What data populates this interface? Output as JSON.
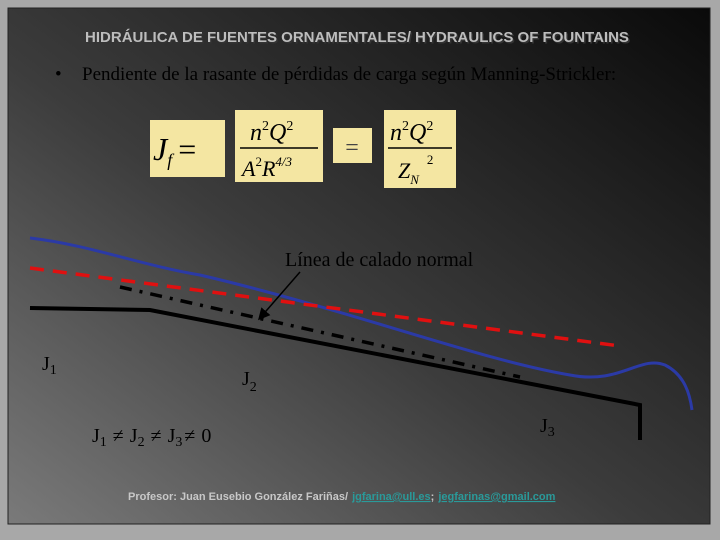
{
  "header": {
    "title": "HIDRÁULICA DE FUENTES ORNAMENTALES/ HYDRAULICS OF FOUNTAINS"
  },
  "bullet": "Pendiente de la rasante de pérdidas de carga según Manning-Strickler:",
  "formula": {
    "lhs": "J",
    "lhs_sub": "f",
    "eq1": "=",
    "num1": [
      "n",
      "2",
      "Q",
      "2"
    ],
    "den1": [
      "A",
      "2",
      "R",
      "4/3"
    ],
    "eq2": "=",
    "num2": [
      "n",
      "2",
      "Q",
      "2"
    ],
    "den2": [
      "Z",
      "N",
      "2"
    ]
  },
  "annotation": "Línea de calado normal",
  "labels": [
    {
      "base": "J",
      "sub": "1"
    },
    {
      "base": "J",
      "sub": "2"
    },
    {
      "base": "J",
      "sub": "3"
    }
  ],
  "inequality": [
    "J",
    "1",
    "≠",
    "J",
    "2",
    "≠",
    "J",
    "3",
    "≠",
    "0"
  ],
  "footer": {
    "author": "Profesor: Juan Eusebio González Fariñas/",
    "email1": "jgfarina@ull.es",
    "separator": ";",
    "email2": "jegfarinas@gmail.com"
  }
}
